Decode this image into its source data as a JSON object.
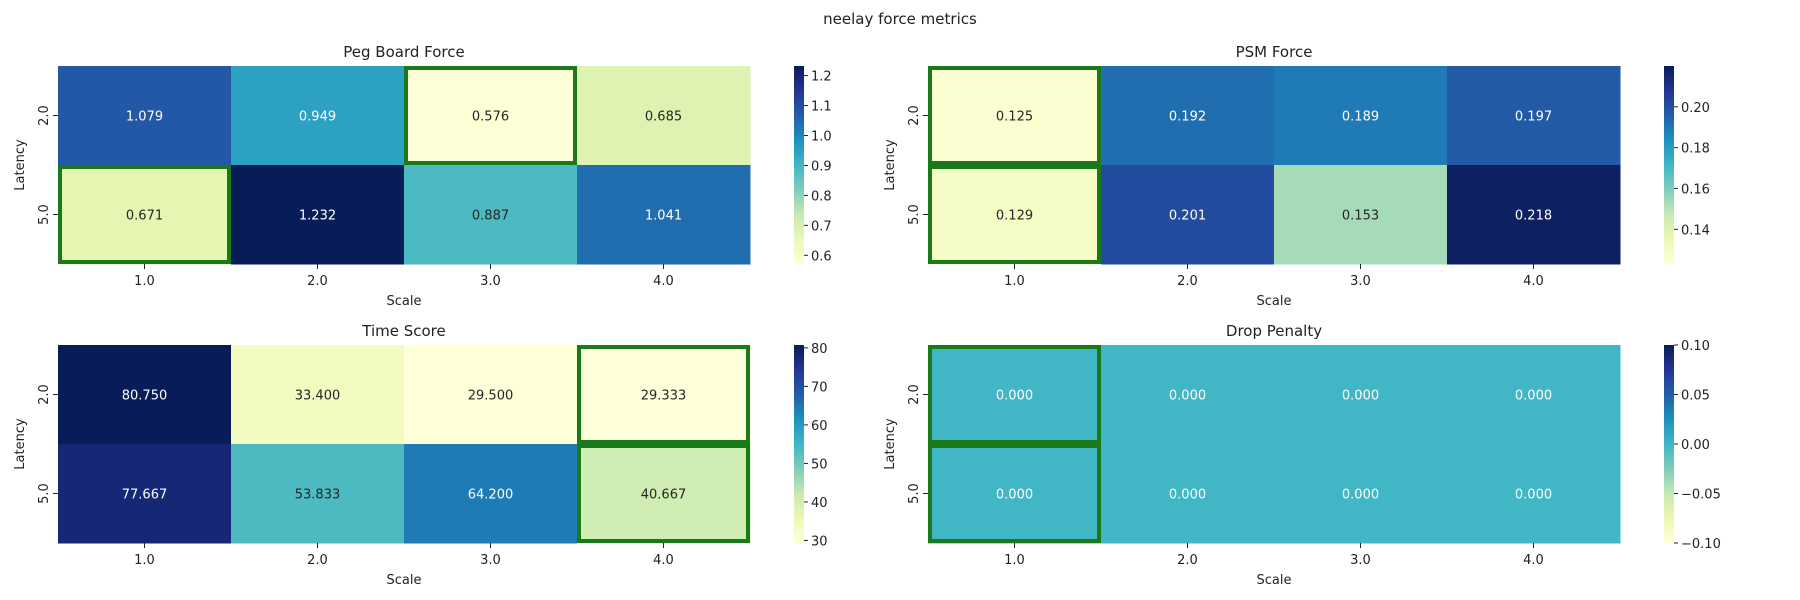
{
  "figure": {
    "title": "neelay force metrics"
  },
  "chart_data": [
    {
      "type": "heatmap",
      "title": "Peg Board Force",
      "xlabel": "Scale",
      "ylabel": "Latency",
      "x": [
        "1.0",
        "2.0",
        "3.0",
        "4.0"
      ],
      "y": [
        "2.0",
        "5.0"
      ],
      "values": [
        [
          1.079,
          0.949,
          0.576,
          0.685
        ],
        [
          0.671,
          1.232,
          0.887,
          1.041
        ]
      ],
      "labels": [
        [
          "1.079",
          "0.949",
          "0.576",
          "0.685"
        ],
        [
          "0.671",
          "1.232",
          "0.887",
          "1.041"
        ]
      ],
      "vmin": 0.571,
      "vmax": 1.232,
      "colorbar_ticks": [
        0.6,
        0.7,
        0.8,
        0.9,
        1.0,
        1.1,
        1.2
      ],
      "colorbar_labels": [
        "0.6",
        "0.7",
        "0.8",
        "0.9",
        "1.0",
        "1.1",
        "1.2"
      ],
      "highlight": [
        [
          0,
          2
        ],
        [
          1,
          0
        ]
      ],
      "colormap": "YlGnBu",
      "highlight_color": "#1a7a1a"
    },
    {
      "type": "heatmap",
      "title": "PSM Force",
      "xlabel": "Scale",
      "ylabel": "Latency",
      "x": [
        "1.0",
        "2.0",
        "3.0",
        "4.0"
      ],
      "y": [
        "2.0",
        "5.0"
      ],
      "values": [
        [
          0.125,
          0.192,
          0.189,
          0.197
        ],
        [
          0.129,
          0.201,
          0.153,
          0.218
        ]
      ],
      "labels": [
        [
          "0.125",
          "0.192",
          "0.189",
          "0.197"
        ],
        [
          "0.129",
          "0.201",
          "0.153",
          "0.218"
        ]
      ],
      "vmin": 0.123,
      "vmax": 0.22,
      "colorbar_ticks": [
        0.14,
        0.16,
        0.18,
        0.2
      ],
      "colorbar_labels": [
        "0.14",
        "0.16",
        "0.18",
        "0.20"
      ],
      "highlight": [
        [
          0,
          0
        ],
        [
          1,
          0
        ]
      ],
      "colormap": "YlGnBu",
      "highlight_color": "#1a7a1a"
    },
    {
      "type": "heatmap",
      "title": "Time Score",
      "xlabel": "Scale",
      "ylabel": "Latency",
      "x": [
        "1.0",
        "2.0",
        "3.0",
        "4.0"
      ],
      "y": [
        "2.0",
        "5.0"
      ],
      "values": [
        [
          80.75,
          33.4,
          29.5,
          29.333
        ],
        [
          77.667,
          53.833,
          64.2,
          40.667
        ]
      ],
      "labels": [
        [
          "80.750",
          "33.400",
          "29.500",
          "29.333"
        ],
        [
          "77.667",
          "53.833",
          "64.200",
          "40.667"
        ]
      ],
      "vmin": 29.333,
      "vmax": 80.75,
      "colorbar_ticks": [
        30,
        40,
        50,
        60,
        70,
        80
      ],
      "colorbar_labels": [
        "30",
        "40",
        "50",
        "60",
        "70",
        "80"
      ],
      "highlight": [
        [
          0,
          3
        ],
        [
          1,
          3
        ]
      ],
      "colormap": "YlGnBu",
      "highlight_color": "#1a7a1a"
    },
    {
      "type": "heatmap",
      "title": "Drop Penalty",
      "xlabel": "Scale",
      "ylabel": "Latency",
      "x": [
        "1.0",
        "2.0",
        "3.0",
        "4.0"
      ],
      "y": [
        "2.0",
        "5.0"
      ],
      "values": [
        [
          0.0,
          0.0,
          0.0,
          0.0
        ],
        [
          0.0,
          0.0,
          0.0,
          0.0
        ]
      ],
      "labels": [
        [
          "0.000",
          "0.000",
          "0.000",
          "0.000"
        ],
        [
          "0.000",
          "0.000",
          "0.000",
          "0.000"
        ]
      ],
      "vmin": -0.1,
      "vmax": 0.1,
      "colorbar_ticks": [
        -0.1,
        -0.05,
        0.0,
        0.05,
        0.1
      ],
      "colorbar_labels": [
        "−0.10",
        "−0.05",
        "0.00",
        "0.05",
        "0.10"
      ],
      "highlight": [
        [
          0,
          0
        ],
        [
          1,
          0
        ]
      ],
      "colormap": "YlGnBu",
      "highlight_color": "#1a7a1a"
    }
  ]
}
